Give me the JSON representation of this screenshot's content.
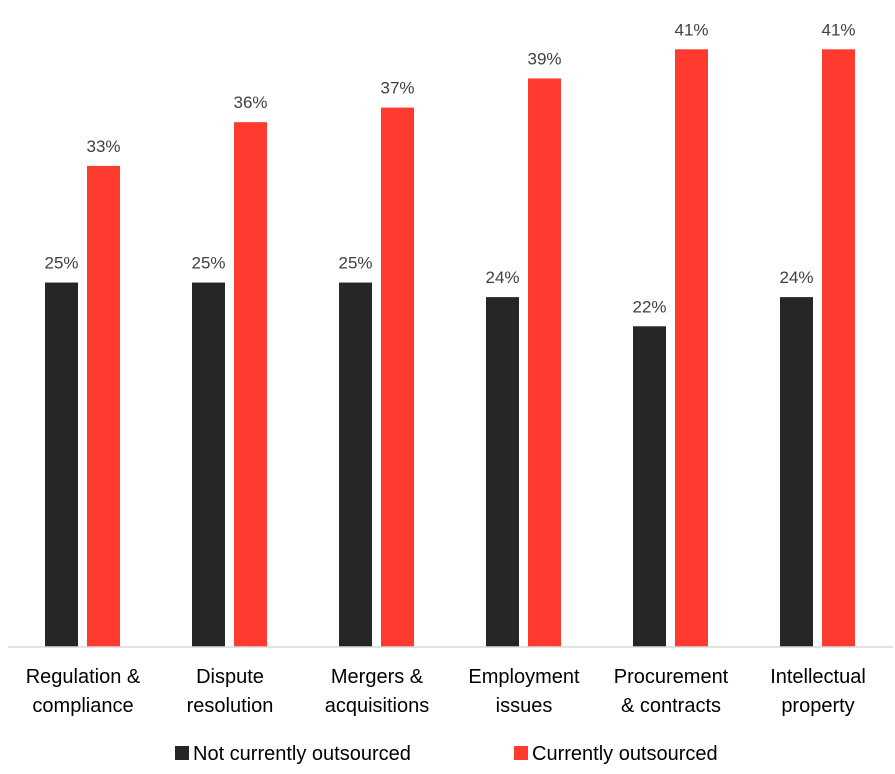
{
  "chart_data": {
    "type": "bar",
    "title": "",
    "xlabel": "",
    "ylabel": "",
    "ylim": [
      0,
      41.5
    ],
    "grid": false,
    "legend_position": "bottom",
    "categories": [
      [
        "Regulation &",
        "compliance"
      ],
      [
        "Dispute",
        "resolution"
      ],
      [
        "Mergers &",
        "acquisitions"
      ],
      [
        "Employment",
        "issues"
      ],
      [
        "Procurement",
        "& contracts"
      ],
      [
        "Intellectual",
        "property"
      ]
    ],
    "series": [
      {
        "name": "Not currently outsourced",
        "color": "#262626",
        "values": [
          25,
          25,
          25,
          24,
          22,
          24
        ],
        "labels": [
          "25%",
          "25%",
          "25%",
          "24%",
          "22%",
          "24%"
        ]
      },
      {
        "name": "Currently outsourced",
        "color": "#ff3b30",
        "values": [
          33,
          36,
          37,
          39,
          41,
          41
        ],
        "labels": [
          "33%",
          "36%",
          "37%",
          "39%",
          "41%",
          "41%"
        ]
      }
    ]
  }
}
